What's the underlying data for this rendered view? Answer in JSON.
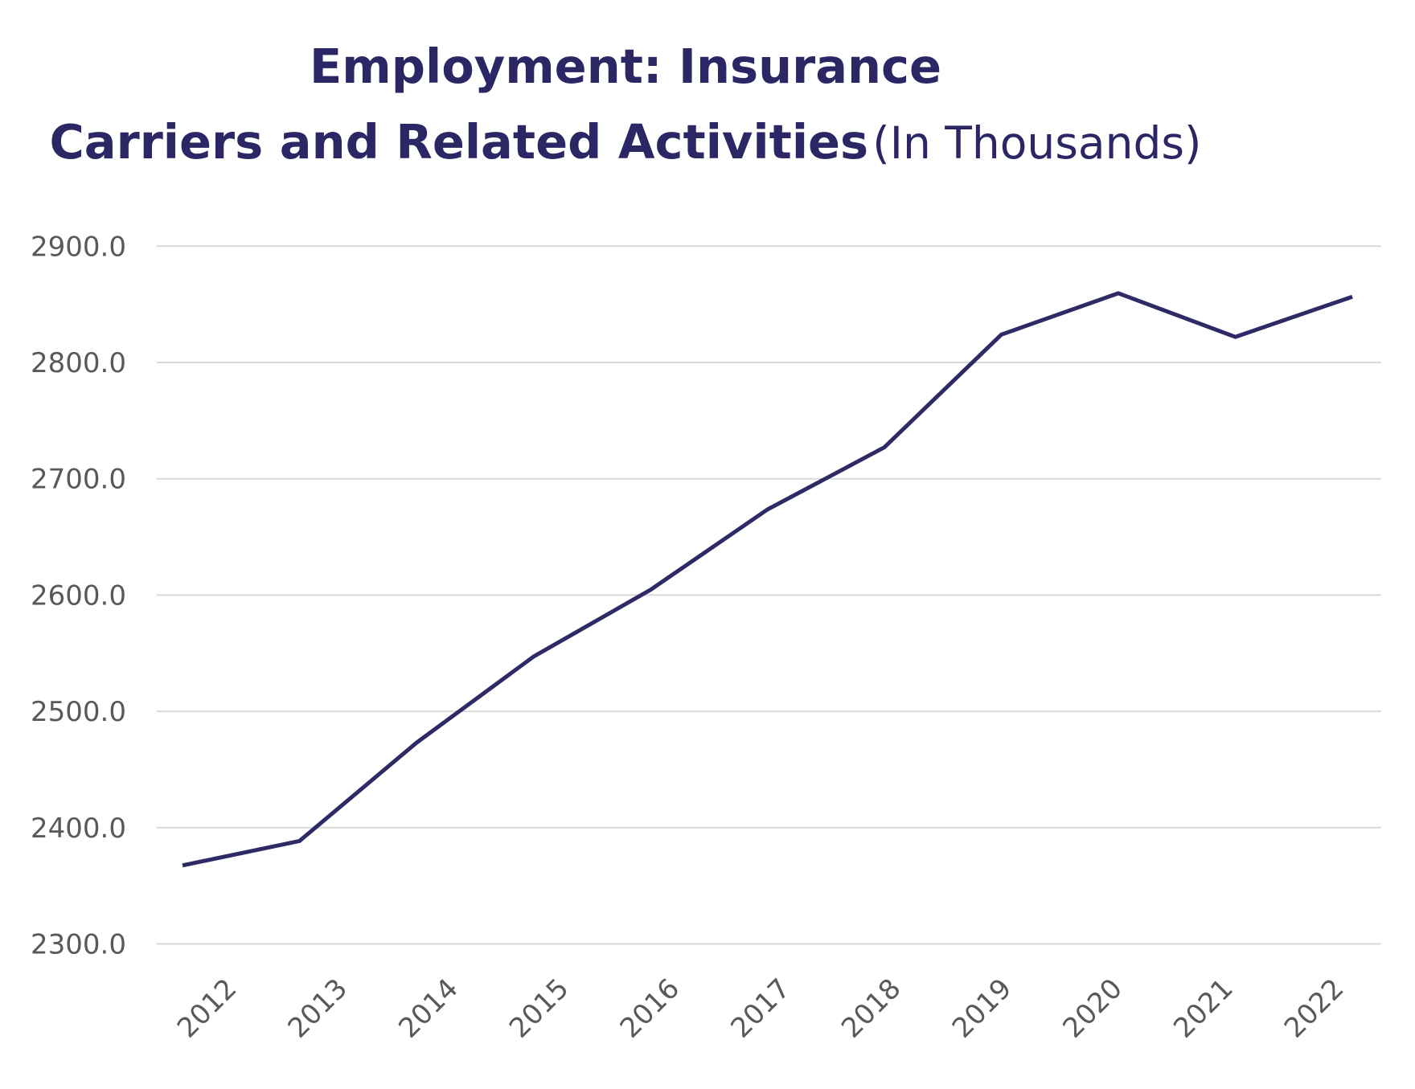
{
  "header": {
    "line1": "Employment: Insurance",
    "line2_bold": "Carriers and Related Activities",
    "line2_suffix": "(In Thousands)"
  },
  "colors": {
    "title": "#2B2765",
    "line": "#2E2A66",
    "tick_label": "#595959",
    "gridline": "#D9D9D9",
    "background": "#FFFFFF"
  },
  "chart_data": {
    "type": "line",
    "title": "Employment: Insurance Carriers and Related Activities",
    "subtitle": "(In Thousands)",
    "categories": [
      "2012",
      "2013",
      "2014",
      "2015",
      "2016",
      "2017",
      "2018",
      "2019",
      "2020",
      "2021",
      "2022"
    ],
    "series": [
      {
        "name": "Employment: Insurance Carriers and Related Activities (In Thousands)",
        "values": [
          2367.5,
          2388.5,
          2473.0,
          2547.0,
          2604.5,
          2673.5,
          2727.0,
          2824.0,
          2859.5,
          2822.0,
          2856.5
        ]
      }
    ],
    "xlabel": "",
    "ylabel": "",
    "ylim": [
      2300,
      2900
    ],
    "ytick_step": 100,
    "ytick_labels": [
      "2300.0",
      "2400.0",
      "2500.0",
      "2600.0",
      "2700.0",
      "2800.0",
      "2900.0"
    ],
    "x_tick_rotation_deg": 45,
    "grid": "horizontal-only",
    "legend": "none"
  }
}
